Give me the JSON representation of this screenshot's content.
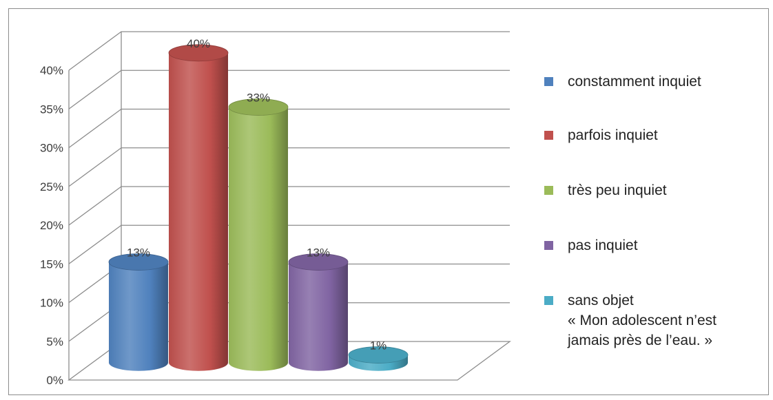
{
  "chart_data": {
    "type": "bar",
    "style": "3d-cylinder",
    "categories": [
      "constamment inquiet",
      "parfois inquiet",
      "très peu inquiet",
      "pas inquiet",
      "sans objet « Mon adolescent n’est jamais près de l’eau. »"
    ],
    "values": [
      13,
      40,
      33,
      13,
      1
    ],
    "data_labels": [
      "13%",
      "40%",
      "33%",
      "13%",
      "1%"
    ],
    "colors": [
      "#4f81bd",
      "#c0504d",
      "#9bbb59",
      "#8064a2",
      "#4bacc6"
    ],
    "yticks": [
      "0%",
      "5%",
      "10%",
      "15%",
      "20%",
      "25%",
      "30%",
      "35%",
      "40%"
    ],
    "ylim": [
      0,
      40
    ],
    "grid": true,
    "legend_position": "right"
  },
  "legend": [
    {
      "lines": [
        "constamment inquiet"
      ],
      "color": "#4f81bd"
    },
    {
      "lines": [
        "parfois inquiet"
      ],
      "color": "#c0504d"
    },
    {
      "lines": [
        "très peu inquiet"
      ],
      "color": "#9bbb59"
    },
    {
      "lines": [
        "pas inquiet"
      ],
      "color": "#8064a2"
    },
    {
      "lines": [
        "sans objet",
        "« Mon adolescent n’est",
        "jamais près de l’eau. »"
      ],
      "color": "#4bacc6"
    }
  ]
}
